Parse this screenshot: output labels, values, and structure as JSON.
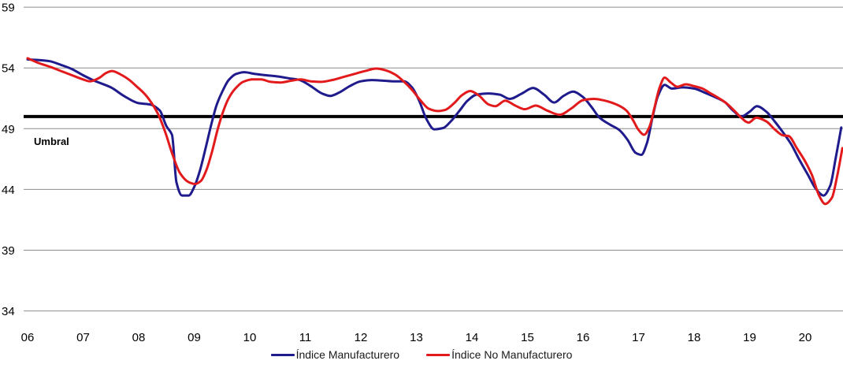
{
  "chart_data": {
    "type": "line",
    "title": "",
    "xlabel": "",
    "ylabel": "",
    "grid": true,
    "legend_position": "bottom",
    "x_axis": {
      "tick_labels": [
        "06",
        "07",
        "08",
        "09",
        "10",
        "11",
        "12",
        "13",
        "14",
        "15",
        "16",
        "17",
        "18",
        "19",
        "20"
      ],
      "tick_years": [
        2006,
        2007,
        2008,
        2009,
        2010,
        2011,
        2012,
        2013,
        2014,
        2015,
        2016,
        2017,
        2018,
        2019,
        2020
      ]
    },
    "y_axis": {
      "ticks": [
        34,
        39,
        44,
        49,
        54,
        59
      ],
      "min": 34,
      "max": 59
    },
    "threshold": {
      "label": "Umbral",
      "value": 50
    },
    "x_range": [
      2006.0,
      2020.7
    ],
    "series": [
      {
        "name": "Índice Manufacturero",
        "color": "#1f1b8c",
        "points": [
          [
            2006.0,
            54.7
          ],
          [
            2006.2,
            54.65
          ],
          [
            2006.4,
            54.55
          ],
          [
            2006.6,
            54.25
          ],
          [
            2006.8,
            53.9
          ],
          [
            2007.0,
            53.4
          ],
          [
            2007.2,
            52.95
          ],
          [
            2007.5,
            52.4
          ],
          [
            2007.75,
            51.65
          ],
          [
            2008.0,
            51.1
          ],
          [
            2008.2,
            51.0
          ],
          [
            2008.38,
            50.5
          ],
          [
            2008.5,
            49.2
          ],
          [
            2008.6,
            48.5
          ],
          [
            2008.68,
            44.6
          ],
          [
            2008.78,
            43.5
          ],
          [
            2008.9,
            43.5
          ],
          [
            2009.0,
            44.2
          ],
          [
            2009.1,
            45.5
          ],
          [
            2009.2,
            47.3
          ],
          [
            2009.3,
            49.2
          ],
          [
            2009.4,
            50.9
          ],
          [
            2009.5,
            52.0
          ],
          [
            2009.62,
            53.0
          ],
          [
            2009.75,
            53.5
          ],
          [
            2009.9,
            53.65
          ],
          [
            2010.1,
            53.5
          ],
          [
            2010.3,
            53.4
          ],
          [
            2010.5,
            53.3
          ],
          [
            2010.7,
            53.15
          ],
          [
            2010.9,
            53.0
          ],
          [
            2011.1,
            52.5
          ],
          [
            2011.3,
            51.9
          ],
          [
            2011.45,
            51.7
          ],
          [
            2011.6,
            51.95
          ],
          [
            2011.8,
            52.5
          ],
          [
            2012.0,
            52.9
          ],
          [
            2012.2,
            53.0
          ],
          [
            2012.4,
            52.95
          ],
          [
            2012.6,
            52.9
          ],
          [
            2012.78,
            52.9
          ],
          [
            2012.92,
            52.4
          ],
          [
            2013.05,
            51.3
          ],
          [
            2013.18,
            49.8
          ],
          [
            2013.32,
            48.95
          ],
          [
            2013.48,
            49.05
          ],
          [
            2013.62,
            49.6
          ],
          [
            2013.78,
            50.5
          ],
          [
            2013.92,
            51.3
          ],
          [
            2014.08,
            51.8
          ],
          [
            2014.3,
            51.9
          ],
          [
            2014.5,
            51.8
          ],
          [
            2014.68,
            51.45
          ],
          [
            2014.9,
            51.9
          ],
          [
            2015.1,
            52.35
          ],
          [
            2015.3,
            51.8
          ],
          [
            2015.48,
            51.15
          ],
          [
            2015.65,
            51.7
          ],
          [
            2015.82,
            52.05
          ],
          [
            2016.0,
            51.6
          ],
          [
            2016.15,
            50.8
          ],
          [
            2016.3,
            49.9
          ],
          [
            2016.48,
            49.35
          ],
          [
            2016.65,
            48.9
          ],
          [
            2016.8,
            48.1
          ],
          [
            2016.95,
            47.0
          ],
          [
            2017.05,
            46.85
          ],
          [
            2017.15,
            47.8
          ],
          [
            2017.25,
            49.9
          ],
          [
            2017.35,
            51.7
          ],
          [
            2017.47,
            52.6
          ],
          [
            2017.6,
            52.3
          ],
          [
            2017.8,
            52.4
          ],
          [
            2018.0,
            52.3
          ],
          [
            2018.2,
            51.95
          ],
          [
            2018.4,
            51.55
          ],
          [
            2018.55,
            51.2
          ],
          [
            2018.7,
            50.5
          ],
          [
            2018.85,
            50.0
          ],
          [
            2019.0,
            50.4
          ],
          [
            2019.13,
            50.85
          ],
          [
            2019.3,
            50.4
          ],
          [
            2019.45,
            49.6
          ],
          [
            2019.6,
            48.7
          ],
          [
            2019.75,
            47.7
          ],
          [
            2019.9,
            46.4
          ],
          [
            2020.05,
            45.2
          ],
          [
            2020.2,
            44.0
          ],
          [
            2020.33,
            43.5
          ],
          [
            2020.45,
            44.3
          ],
          [
            2020.55,
            46.6
          ],
          [
            2020.65,
            49.1
          ]
        ]
      },
      {
        "name": "Índice No Manufacturero",
        "color": "#e31a1c",
        "points": [
          [
            2006.0,
            54.8
          ],
          [
            2006.2,
            54.4
          ],
          [
            2006.4,
            54.1
          ],
          [
            2006.6,
            53.75
          ],
          [
            2006.8,
            53.4
          ],
          [
            2007.0,
            53.05
          ],
          [
            2007.12,
            52.9
          ],
          [
            2007.28,
            53.15
          ],
          [
            2007.42,
            53.6
          ],
          [
            2007.52,
            53.75
          ],
          [
            2007.68,
            53.45
          ],
          [
            2007.82,
            53.05
          ],
          [
            2007.97,
            52.45
          ],
          [
            2008.1,
            51.9
          ],
          [
            2008.22,
            51.2
          ],
          [
            2008.35,
            50.2
          ],
          [
            2008.48,
            48.7
          ],
          [
            2008.6,
            47.0
          ],
          [
            2008.75,
            45.3
          ],
          [
            2008.9,
            44.6
          ],
          [
            2009.02,
            44.45
          ],
          [
            2009.12,
            44.7
          ],
          [
            2009.22,
            45.6
          ],
          [
            2009.32,
            47.1
          ],
          [
            2009.42,
            48.9
          ],
          [
            2009.52,
            50.4
          ],
          [
            2009.62,
            51.5
          ],
          [
            2009.74,
            52.3
          ],
          [
            2009.88,
            52.85
          ],
          [
            2010.05,
            53.05
          ],
          [
            2010.2,
            53.05
          ],
          [
            2010.38,
            52.85
          ],
          [
            2010.55,
            52.8
          ],
          [
            2010.75,
            52.95
          ],
          [
            2010.92,
            53.05
          ],
          [
            2011.1,
            52.9
          ],
          [
            2011.28,
            52.85
          ],
          [
            2011.48,
            53.0
          ],
          [
            2011.68,
            53.25
          ],
          [
            2011.88,
            53.5
          ],
          [
            2012.08,
            53.75
          ],
          [
            2012.28,
            53.95
          ],
          [
            2012.45,
            53.8
          ],
          [
            2012.62,
            53.45
          ],
          [
            2012.78,
            52.85
          ],
          [
            2012.92,
            52.2
          ],
          [
            2013.08,
            51.3
          ],
          [
            2013.22,
            50.65
          ],
          [
            2013.38,
            50.45
          ],
          [
            2013.52,
            50.55
          ],
          [
            2013.68,
            51.1
          ],
          [
            2013.82,
            51.75
          ],
          [
            2013.97,
            52.1
          ],
          [
            2014.12,
            51.75
          ],
          [
            2014.3,
            51.0
          ],
          [
            2014.42,
            50.85
          ],
          [
            2014.6,
            51.3
          ],
          [
            2014.78,
            50.9
          ],
          [
            2014.95,
            50.6
          ],
          [
            2015.15,
            50.9
          ],
          [
            2015.35,
            50.5
          ],
          [
            2015.58,
            50.15
          ],
          [
            2015.8,
            50.7
          ],
          [
            2016.0,
            51.35
          ],
          [
            2016.2,
            51.45
          ],
          [
            2016.4,
            51.3
          ],
          [
            2016.6,
            51.0
          ],
          [
            2016.78,
            50.5
          ],
          [
            2016.9,
            49.7
          ],
          [
            2017.0,
            48.9
          ],
          [
            2017.1,
            48.5
          ],
          [
            2017.2,
            49.2
          ],
          [
            2017.28,
            50.6
          ],
          [
            2017.38,
            52.4
          ],
          [
            2017.47,
            53.2
          ],
          [
            2017.58,
            52.8
          ],
          [
            2017.7,
            52.45
          ],
          [
            2017.85,
            52.65
          ],
          [
            2018.0,
            52.5
          ],
          [
            2018.15,
            52.3
          ],
          [
            2018.3,
            51.9
          ],
          [
            2018.45,
            51.5
          ],
          [
            2018.58,
            51.1
          ],
          [
            2018.72,
            50.5
          ],
          [
            2018.85,
            49.9
          ],
          [
            2018.98,
            49.5
          ],
          [
            2019.12,
            49.9
          ],
          [
            2019.3,
            49.6
          ],
          [
            2019.45,
            48.95
          ],
          [
            2019.6,
            48.45
          ],
          [
            2019.7,
            48.4
          ],
          [
            2019.85,
            47.4
          ],
          [
            2020.0,
            46.3
          ],
          [
            2020.12,
            45.2
          ],
          [
            2020.25,
            43.5
          ],
          [
            2020.36,
            42.8
          ],
          [
            2020.48,
            43.3
          ],
          [
            2020.58,
            45.2
          ],
          [
            2020.67,
            47.4
          ]
        ]
      }
    ]
  },
  "legend": {
    "items": [
      {
        "label": "Índice Manufacturero"
      },
      {
        "label": "Índice No Manufacturero"
      }
    ]
  },
  "style": {
    "gridline_color": "#8c8c8c",
    "threshold_color": "#000000",
    "tick_font_size": 15,
    "line_width": 3
  }
}
